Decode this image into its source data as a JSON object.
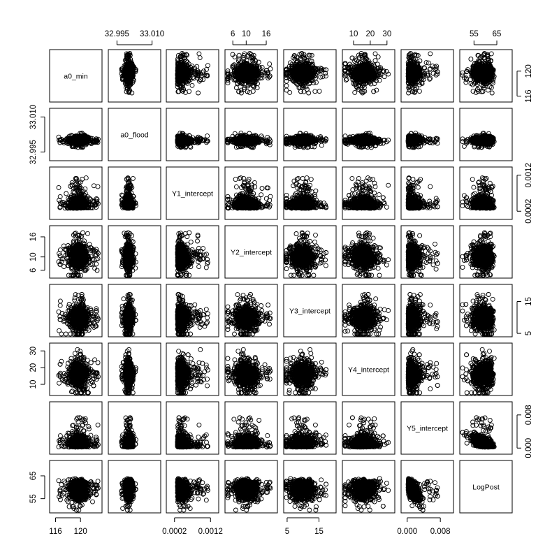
{
  "chart_data": {
    "type": "scatter",
    "subtype": "scatterplot-matrix",
    "title": "",
    "variables": [
      {
        "name": "a0_min",
        "range": [
          115.5,
          123.0
        ],
        "ticks": [
          {
            "v": 116,
            "label": "116"
          },
          {
            "v": 120,
            "label": "120"
          }
        ],
        "sides": [
          "bottom",
          "right"
        ]
      },
      {
        "name": "a0_flood",
        "range": [
          32.9925,
          33.0125
        ],
        "ticks": [
          {
            "v": 32.995,
            "label": "32.995"
          },
          {
            "v": 33.01,
            "label": "33.010"
          }
        ],
        "sides": [
          "top",
          "left"
        ]
      },
      {
        "name": "Y1_intercept",
        "range": [
          5e-05,
          0.00135
        ],
        "ticks": [
          {
            "v": 0.0002,
            "label": "0.0002"
          },
          {
            "v": 0.0012,
            "label": "0.0012"
          }
        ],
        "sides": [
          "bottom",
          "right"
        ]
      },
      {
        "name": "Y2_intercept",
        "range": [
          4.5,
          18.5
        ],
        "ticks": [
          {
            "v": 6,
            "label": "6"
          },
          {
            "v": 10,
            "label": "10"
          },
          {
            "v": 16,
            "label": "16"
          }
        ],
        "sides": [
          "top",
          "left"
        ]
      },
      {
        "name": "Y3_intercept",
        "range": [
          4.8,
          19.5
        ],
        "ticks": [
          {
            "v": 5,
            "label": "5"
          },
          {
            "v": 15,
            "label": "15"
          }
        ],
        "sides": [
          "bottom",
          "right"
        ]
      },
      {
        "name": "Y4_intercept",
        "range": [
          5.0,
          33.0
        ],
        "ticks": [
          {
            "v": 10,
            "label": "10"
          },
          {
            "v": 20,
            "label": "20"
          },
          {
            "v": 30,
            "label": "30"
          }
        ],
        "sides": [
          "top",
          "left"
        ]
      },
      {
        "name": "Y5_intercept",
        "range": [
          -0.0008,
          0.0105
        ],
        "ticks": [
          {
            "v": 0.0,
            "label": "0.000"
          },
          {
            "v": 0.008,
            "label": "0.008"
          }
        ],
        "sides": [
          "bottom",
          "right"
        ]
      },
      {
        "name": "LogPost",
        "range": [
          50.0,
          70.5
        ],
        "ticks": [
          {
            "v": 55,
            "label": "55"
          },
          {
            "v": 65,
            "label": "65"
          }
        ],
        "sides": [
          "top",
          "left"
        ]
      }
    ],
    "marginal_distributions": [
      {
        "variable": "a0_min",
        "center": 119.7,
        "spread": 0.75,
        "shape": "normal"
      },
      {
        "variable": "a0_flood",
        "center": 33.0,
        "spread": 0.0007,
        "shape": "normal"
      },
      {
        "variable": "Y1_intercept",
        "center": 0.00036,
        "spread": 0.00013,
        "shape": "right-skewed"
      },
      {
        "variable": "Y2_intercept",
        "center": 10.0,
        "spread": 1.7,
        "shape": "normal"
      },
      {
        "variable": "Y3_intercept",
        "center": 9.8,
        "spread": 1.8,
        "shape": "normal"
      },
      {
        "variable": "Y4_intercept",
        "center": 16.0,
        "spread": 3.4,
        "shape": "normal"
      },
      {
        "variable": "Y5_intercept",
        "center": 0.0009,
        "spread": 0.0011,
        "shape": "right-skewed"
      },
      {
        "variable": "LogPost",
        "center": 61.8,
        "spread": 2.4,
        "shape": "left-skewed"
      }
    ],
    "notable_correlations": [
      {
        "pair": [
          "Y5_intercept",
          "LogPost"
        ],
        "direction": "negative",
        "strength": "strong"
      },
      {
        "pair": [
          "Y1_intercept",
          "LogPost"
        ],
        "direction": "negative",
        "strength": "moderate"
      },
      {
        "pair": [
          "Y1_intercept",
          "Y5_intercept"
        ],
        "direction": "negative",
        "strength": "moderate"
      }
    ],
    "point_count_per_panel": 750,
    "marker": "open circle",
    "color": "#000000",
    "grid": false,
    "legend": "none"
  }
}
